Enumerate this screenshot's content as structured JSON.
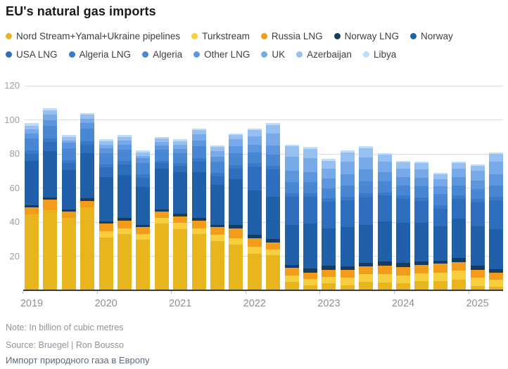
{
  "title": "EU's natural gas imports",
  "note": "Note: In billion of cubic metres",
  "source": "Source: Bruegel | Ron Bousso",
  "caption_ru": "Импорт природного газа в Европу",
  "colors": {
    "title_text": "#1a1a1a",
    "legend_text": "#3f3f3f",
    "axis_line": "#3d3d3d",
    "gridline": "#dcdcdc",
    "tick_text": "#9aa0a6",
    "footer_text": "#8f959b",
    "caption_ru_text": "#5c6b7c"
  },
  "chart_data": {
    "type": "bar",
    "stacked": true,
    "unit": "billion cubic metres",
    "title": "EU's natural gas imports",
    "xlabel": "",
    "ylabel": "",
    "ylim": [
      0,
      120
    ],
    "yticks": [
      20,
      40,
      60,
      80,
      100,
      120
    ],
    "grid": true,
    "legend_position": "top",
    "x_year_labels": [
      "2019",
      "2020",
      "2021",
      "2022",
      "2023",
      "2024",
      "2025"
    ],
    "categories": [
      "2019 Q1",
      "2019 Q2",
      "2019 Q3",
      "2019 Q4",
      "2020 Q1",
      "2020 Q2",
      "2020 Q3",
      "2020 Q4",
      "2021 Q1",
      "2021 Q2",
      "2021 Q3",
      "2021 Q4",
      "2022 Q1",
      "2022 Q2",
      "2022 Q3",
      "2022 Q4",
      "2023 Q1",
      "2023 Q2",
      "2023 Q3",
      "2023 Q4",
      "2024 Q1",
      "2024 Q2",
      "2024 Q3",
      "2024 Q4",
      "2025 Q1",
      "2025 Q2"
    ],
    "series": [
      {
        "name": "Nord Stream+Yamal+Ukraine pipelines",
        "color": "#E9B51F",
        "values": [
          44.5,
          47,
          42.5,
          48.5,
          31,
          33,
          29.5,
          39,
          36,
          33,
          29,
          27,
          21.5,
          20.5,
          5,
          3,
          4,
          3,
          5,
          4.5,
          4,
          5.5,
          5.5,
          6,
          2.5,
          2
        ]
      },
      {
        "name": "Turkstream",
        "color": "#F6CE3F",
        "values": [
          0,
          0,
          0,
          0,
          3.5,
          3.5,
          3.5,
          3.5,
          3.5,
          3.5,
          3.5,
          3.5,
          4,
          3.5,
          3.5,
          3.5,
          4,
          4.5,
          4.5,
          5,
          4.5,
          4.5,
          5,
          5.5,
          5,
          4
        ]
      },
      {
        "name": "Russia LNG",
        "color": "#F39C1A",
        "values": [
          4,
          6,
          3.5,
          4,
          4.5,
          4.5,
          4,
          3.5,
          4,
          4.5,
          4.5,
          6,
          5,
          4,
          4.5,
          4,
          4,
          4.5,
          4.5,
          5,
          5,
          5,
          5,
          5,
          4.5,
          4.5
        ]
      },
      {
        "name": "Norway LNG",
        "color": "#153C64",
        "values": [
          1.5,
          1.5,
          1.5,
          1.5,
          1.5,
          1.5,
          1.5,
          1.5,
          1.5,
          1.5,
          1.5,
          2,
          2,
          2,
          2,
          2.5,
          2.5,
          2,
          2,
          2.5,
          2.5,
          2,
          2,
          2.5,
          2.5,
          2
        ]
      },
      {
        "name": "Norway",
        "color": "#1F60A9",
        "values": [
          26,
          27,
          23,
          26.5,
          26,
          25,
          22,
          24,
          24.5,
          27,
          23.5,
          26.5,
          26,
          25,
          23.5,
          26,
          22,
          23,
          22.5,
          23.5,
          23.5,
          22.5,
          20,
          23,
          23,
          23.5
        ]
      },
      {
        "name": "USA LNG",
        "color": "#2D6FBD",
        "values": [
          4,
          5.5,
          4,
          5,
          5.5,
          6.5,
          5.5,
          3,
          3.5,
          6,
          5,
          6.5,
          14,
          16,
          16.5,
          16,
          15.5,
          16,
          16,
          15,
          14,
          13,
          10.5,
          11.5,
          14,
          17
        ]
      },
      {
        "name": "Algeria LNG",
        "color": "#3A7ACA",
        "values": [
          2,
          2,
          2,
          2,
          2,
          2,
          2,
          1.5,
          1.5,
          2,
          2,
          2,
          2,
          2,
          2,
          2,
          2,
          2,
          2.5,
          2,
          2,
          2,
          2,
          2,
          2,
          2
        ]
      },
      {
        "name": "Algeria",
        "color": "#4A87D3",
        "values": [
          7,
          7.5,
          7,
          7.5,
          6.5,
          6.5,
          6.5,
          6.5,
          6,
          7,
          6.5,
          7,
          6.5,
          6.5,
          6.5,
          6.5,
          6,
          6.5,
          7,
          6.5,
          6,
          6.5,
          6.5,
          6,
          6,
          6.5
        ]
      },
      {
        "name": "Other LNG",
        "color": "#5E96DE",
        "values": [
          3,
          3.5,
          3,
          3,
          3,
          3,
          3,
          2.5,
          2.5,
          3.5,
          3,
          4,
          4.5,
          5.5,
          6.5,
          6,
          5.5,
          6.5,
          7,
          5.5,
          5,
          5,
          4.5,
          5,
          5,
          6.5
        ]
      },
      {
        "name": "UK",
        "color": "#78A9E9",
        "values": [
          2.5,
          3,
          1.5,
          2.5,
          2,
          2.5,
          1.5,
          2,
          2.5,
          3.5,
          3,
          4,
          5,
          7,
          8.5,
          8,
          6,
          7.5,
          7,
          6,
          5,
          5,
          4,
          5,
          5.5,
          7.5
        ]
      },
      {
        "name": "Azerbaijan",
        "color": "#97C0F2",
        "values": [
          2,
          2.5,
          2,
          2.5,
          2,
          2,
          2,
          2,
          2,
          2.5,
          2.5,
          2.5,
          3.5,
          5,
          6,
          5.5,
          4.5,
          5.5,
          5.5,
          4,
          3.5,
          3.5,
          3,
          3,
          3,
          4.5
        ]
      },
      {
        "name": "Libya",
        "color": "#BFDCF8",
        "values": [
          1.5,
          1.5,
          1,
          1,
          1,
          1,
          1,
          1,
          1,
          1,
          1,
          1,
          1,
          1,
          1,
          1,
          1,
          1,
          1,
          1,
          1,
          1,
          1,
          1,
          1,
          1
        ]
      }
    ]
  }
}
